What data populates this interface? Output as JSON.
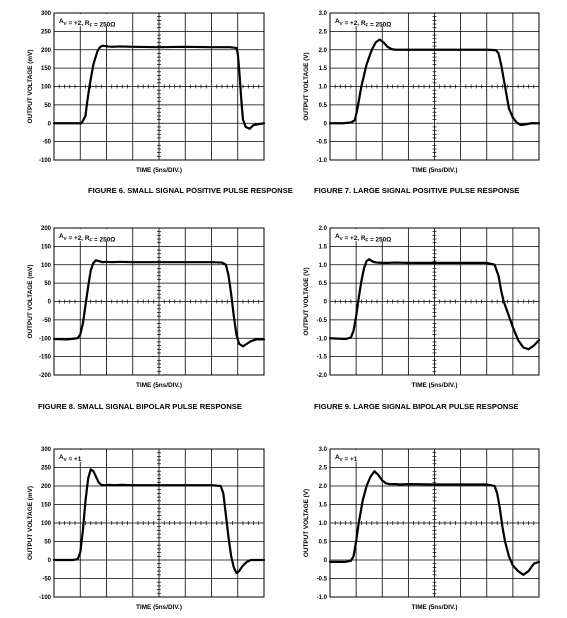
{
  "chart_data": [
    {
      "type": "line",
      "caption": "FIGURE 6.  SMALL SIGNAL POSITIVE PULSE RESPONSE",
      "annotation": "AV = +2, RF = 250Ω",
      "xlabel": "TIME (5ns/DIV.)",
      "ylabel": "OUTPUT VOLTAGE (mV)",
      "x_range": [
        0,
        8
      ],
      "yticks": [
        "300",
        "250",
        "200",
        "150",
        "100",
        "50",
        "0",
        "-50",
        "-100"
      ],
      "ylim": [
        -100,
        300
      ],
      "grid": true,
      "series": [
        {
          "x": [
            0,
            1.05,
            1.2,
            1.25,
            1.35,
            1.5,
            1.65,
            1.75,
            1.85,
            1.95,
            2.05,
            2.2,
            2.5,
            3,
            4,
            5,
            6,
            6.7,
            6.95,
            7,
            7.05,
            7.1,
            7.15,
            7.2,
            7.3,
            7.45,
            7.6,
            8
          ],
          "values": [
            0,
            0,
            20,
            50,
            100,
            160,
            195,
            207,
            211,
            210,
            209,
            208,
            209,
            208,
            207,
            208,
            207,
            207,
            205,
            190,
            150,
            100,
            50,
            10,
            -10,
            -15,
            -5,
            0
          ]
        }
      ]
    },
    {
      "type": "line",
      "caption": "FIGURE 7.  LARGE SIGNAL POSITIVE PULSE RESPONSE",
      "annotation": "AV = +2, RF = 250Ω",
      "xlabel": "TIME (5ns/DIV.)",
      "ylabel": "OUTPUT VOLTAGE (V)",
      "x_range": [
        0,
        8
      ],
      "yticks": [
        "3.0",
        "2.5",
        "2.0",
        "1.5",
        "1.0",
        "0.5",
        "0",
        "-0.5",
        "-1.0"
      ],
      "ylim": [
        -1,
        3
      ],
      "grid": true,
      "series": [
        {
          "x": [
            0,
            0.5,
            0.8,
            0.95,
            1.05,
            1.2,
            1.4,
            1.6,
            1.75,
            1.9,
            2.05,
            2.2,
            2.35,
            2.5,
            2.6,
            3,
            4,
            5,
            6,
            6.35,
            6.45,
            6.55,
            6.65,
            6.75,
            6.85,
            7.0,
            7.15,
            7.3,
            7.5,
            7.7,
            8
          ],
          "values": [
            0,
            0,
            0.02,
            0.08,
            0.4,
            1.0,
            1.6,
            2.0,
            2.2,
            2.28,
            2.2,
            2.08,
            2.02,
            2.0,
            2.0,
            2.0,
            2.0,
            2.0,
            2.0,
            1.99,
            1.9,
            1.6,
            1.2,
            0.8,
            0.4,
            0.15,
            0.02,
            -0.05,
            -0.03,
            0,
            0
          ]
        }
      ]
    },
    {
      "type": "line",
      "caption": "FIGURE 8.  SMALL SIGNAL BIPOLAR PULSE RESPONSE",
      "annotation": "AV = +2, RF = 250Ω",
      "xlabel": "TIME (5ns/DIV.)",
      "ylabel": "OUTPUT VOLTAGE (mV)",
      "x_range": [
        0,
        8
      ],
      "yticks": [
        "200",
        "150",
        "100",
        "50",
        "0",
        "-50",
        "-100",
        "-150",
        "-200"
      ],
      "ylim": [
        -200,
        200
      ],
      "grid": true,
      "series": [
        {
          "x": [
            0,
            0.5,
            0.9,
            1.0,
            1.1,
            1.2,
            1.3,
            1.4,
            1.5,
            1.6,
            1.7,
            1.85,
            2.0,
            2.2,
            2.5,
            3,
            4,
            5,
            6,
            6.4,
            6.55,
            6.65,
            6.75,
            6.85,
            6.95,
            7.05,
            7.2,
            7.35,
            7.5,
            7.7,
            8
          ],
          "values": [
            -102,
            -103,
            -100,
            -90,
            -60,
            -10,
            40,
            85,
            105,
            112,
            110,
            107,
            108,
            107,
            108,
            107,
            107,
            107,
            107,
            106,
            100,
            70,
            20,
            -40,
            -90,
            -115,
            -122,
            -115,
            -108,
            -103,
            -103
          ]
        }
      ]
    },
    {
      "type": "line",
      "caption": "FIGURE 9.  LARGE SIGNAL BIPOLAR PULSE RESPONSE",
      "annotation": "AV = +2, RF = 250Ω",
      "xlabel": "TIME (5ns/DIV.)",
      "ylabel": "OUTPUT VOLTAGE (V)",
      "x_range": [
        0,
        8
      ],
      "yticks": [
        "2.0",
        "1.5",
        "1.0",
        "0.5",
        "0",
        "-0.5",
        "-1.0",
        "-1.5",
        "-2.0"
      ],
      "ylim": [
        -2,
        2
      ],
      "grid": true,
      "series": [
        {
          "x": [
            0,
            0.6,
            0.8,
            0.9,
            1.0,
            1.1,
            1.2,
            1.3,
            1.4,
            1.5,
            1.6,
            1.7,
            1.8,
            2.0,
            2.2,
            2.5,
            3,
            4,
            5,
            6,
            6.3,
            6.45,
            6.55,
            6.65,
            6.8,
            7.0,
            7.2,
            7.4,
            7.6,
            7.8,
            8
          ],
          "values": [
            -1.0,
            -1.02,
            -0.98,
            -0.8,
            -0.4,
            0.1,
            0.55,
            0.9,
            1.1,
            1.15,
            1.1,
            1.07,
            1.06,
            1.05,
            1.05,
            1.06,
            1.05,
            1.05,
            1.05,
            1.05,
            1.0,
            0.7,
            0.3,
            0.0,
            -0.3,
            -0.7,
            -1.05,
            -1.25,
            -1.3,
            -1.2,
            -1.05
          ]
        }
      ]
    },
    {
      "type": "line",
      "caption": "",
      "annotation": "AV = +1",
      "xlabel": "TIME (5ns/DIV.)",
      "ylabel": "OUTPUT VOLTAGE (mV)",
      "x_range": [
        0,
        8
      ],
      "yticks": [
        "300",
        "250",
        "200",
        "150",
        "100",
        "50",
        "0",
        "-50",
        "-100"
      ],
      "ylim": [
        -100,
        300
      ],
      "grid": true,
      "series": [
        {
          "x": [
            0,
            0.7,
            0.9,
            1.0,
            1.1,
            1.2,
            1.3,
            1.4,
            1.5,
            1.6,
            1.7,
            1.8,
            1.95,
            2.1,
            2.3,
            2.6,
            3,
            4,
            5,
            6,
            6.35,
            6.45,
            6.55,
            6.65,
            6.75,
            6.85,
            6.95,
            7.05,
            7.2,
            7.35,
            7.5,
            7.7,
            8
          ],
          "values": [
            0,
            0,
            2,
            20,
            80,
            160,
            220,
            245,
            240,
            225,
            210,
            203,
            202,
            203,
            202,
            203,
            202,
            202,
            202,
            202,
            200,
            180,
            120,
            60,
            10,
            -20,
            -35,
            -30,
            -15,
            -5,
            0,
            0,
            0
          ]
        }
      ]
    },
    {
      "type": "line",
      "caption": "",
      "annotation": "AV = +1",
      "xlabel": "TIME (5ns/DIV.)",
      "ylabel": "OUTPUT VOLTAGE (V)",
      "x_range": [
        0,
        8
      ],
      "yticks": [
        "3.0",
        "2.5",
        "2.0",
        "1.5",
        "1.0",
        "0.5",
        "0",
        "-0.5",
        "-1.0"
      ],
      "ylim": [
        -1,
        3
      ],
      "grid": true,
      "series": [
        {
          "x": [
            0,
            0.6,
            0.8,
            0.9,
            1.0,
            1.1,
            1.25,
            1.4,
            1.55,
            1.7,
            1.85,
            2.0,
            2.15,
            2.3,
            2.5,
            2.7,
            3,
            4,
            5,
            6,
            6.3,
            6.4,
            6.5,
            6.6,
            6.7,
            6.85,
            7.0,
            7.2,
            7.4,
            7.6,
            7.8,
            8
          ],
          "values": [
            -0.05,
            -0.05,
            -0.02,
            0.1,
            0.5,
            1.0,
            1.6,
            2.0,
            2.25,
            2.4,
            2.3,
            2.15,
            2.07,
            2.05,
            2.05,
            2.04,
            2.05,
            2.04,
            2.04,
            2.04,
            2.0,
            1.8,
            1.4,
            0.9,
            0.5,
            0.1,
            -0.15,
            -0.3,
            -0.4,
            -0.3,
            -0.1,
            -0.05
          ]
        }
      ]
    }
  ]
}
